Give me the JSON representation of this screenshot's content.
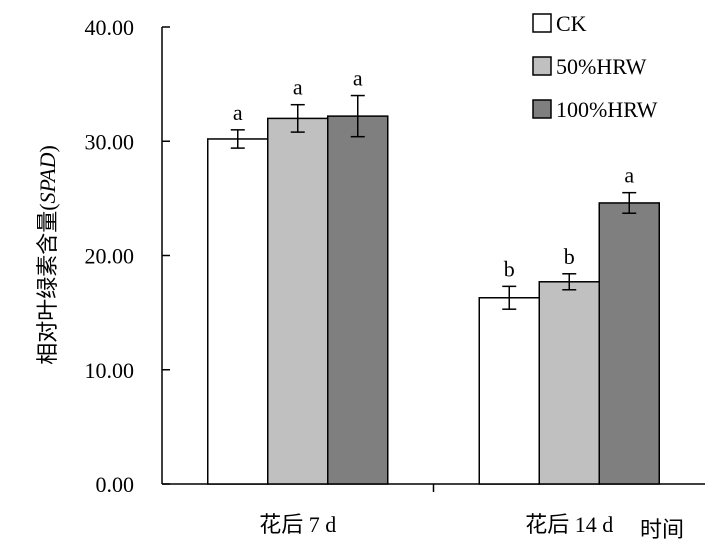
{
  "chart_data": {
    "type": "bar",
    "categories": [
      "花后 7 d",
      "花后 14 d"
    ],
    "series": [
      {
        "name": "CK",
        "color": "#ffffff",
        "values": [
          30.2,
          16.3
        ],
        "errors": [
          0.8,
          1.0
        ],
        "letters": [
          "a",
          "b"
        ]
      },
      {
        "name": "50%HRW",
        "color": "#c0c0c0",
        "values": [
          32.0,
          17.7
        ],
        "errors": [
          1.2,
          0.7
        ],
        "letters": [
          "a",
          "b"
        ]
      },
      {
        "name": "100%HRW",
        "color": "#7f7f7f",
        "values": [
          32.2,
          24.6
        ],
        "errors": [
          1.8,
          0.9
        ],
        "letters": [
          "a",
          "a"
        ]
      }
    ],
    "y_ticks": [
      "0.00",
      "10.00",
      "20.00",
      "30.00",
      "40.00"
    ],
    "ylim": [
      0,
      40
    ],
    "ylabel": "相对叶绿素含量",
    "ylabel_italic": "SPAD",
    "xlabel": "时间",
    "legend_position": "top-right",
    "grid": false
  }
}
